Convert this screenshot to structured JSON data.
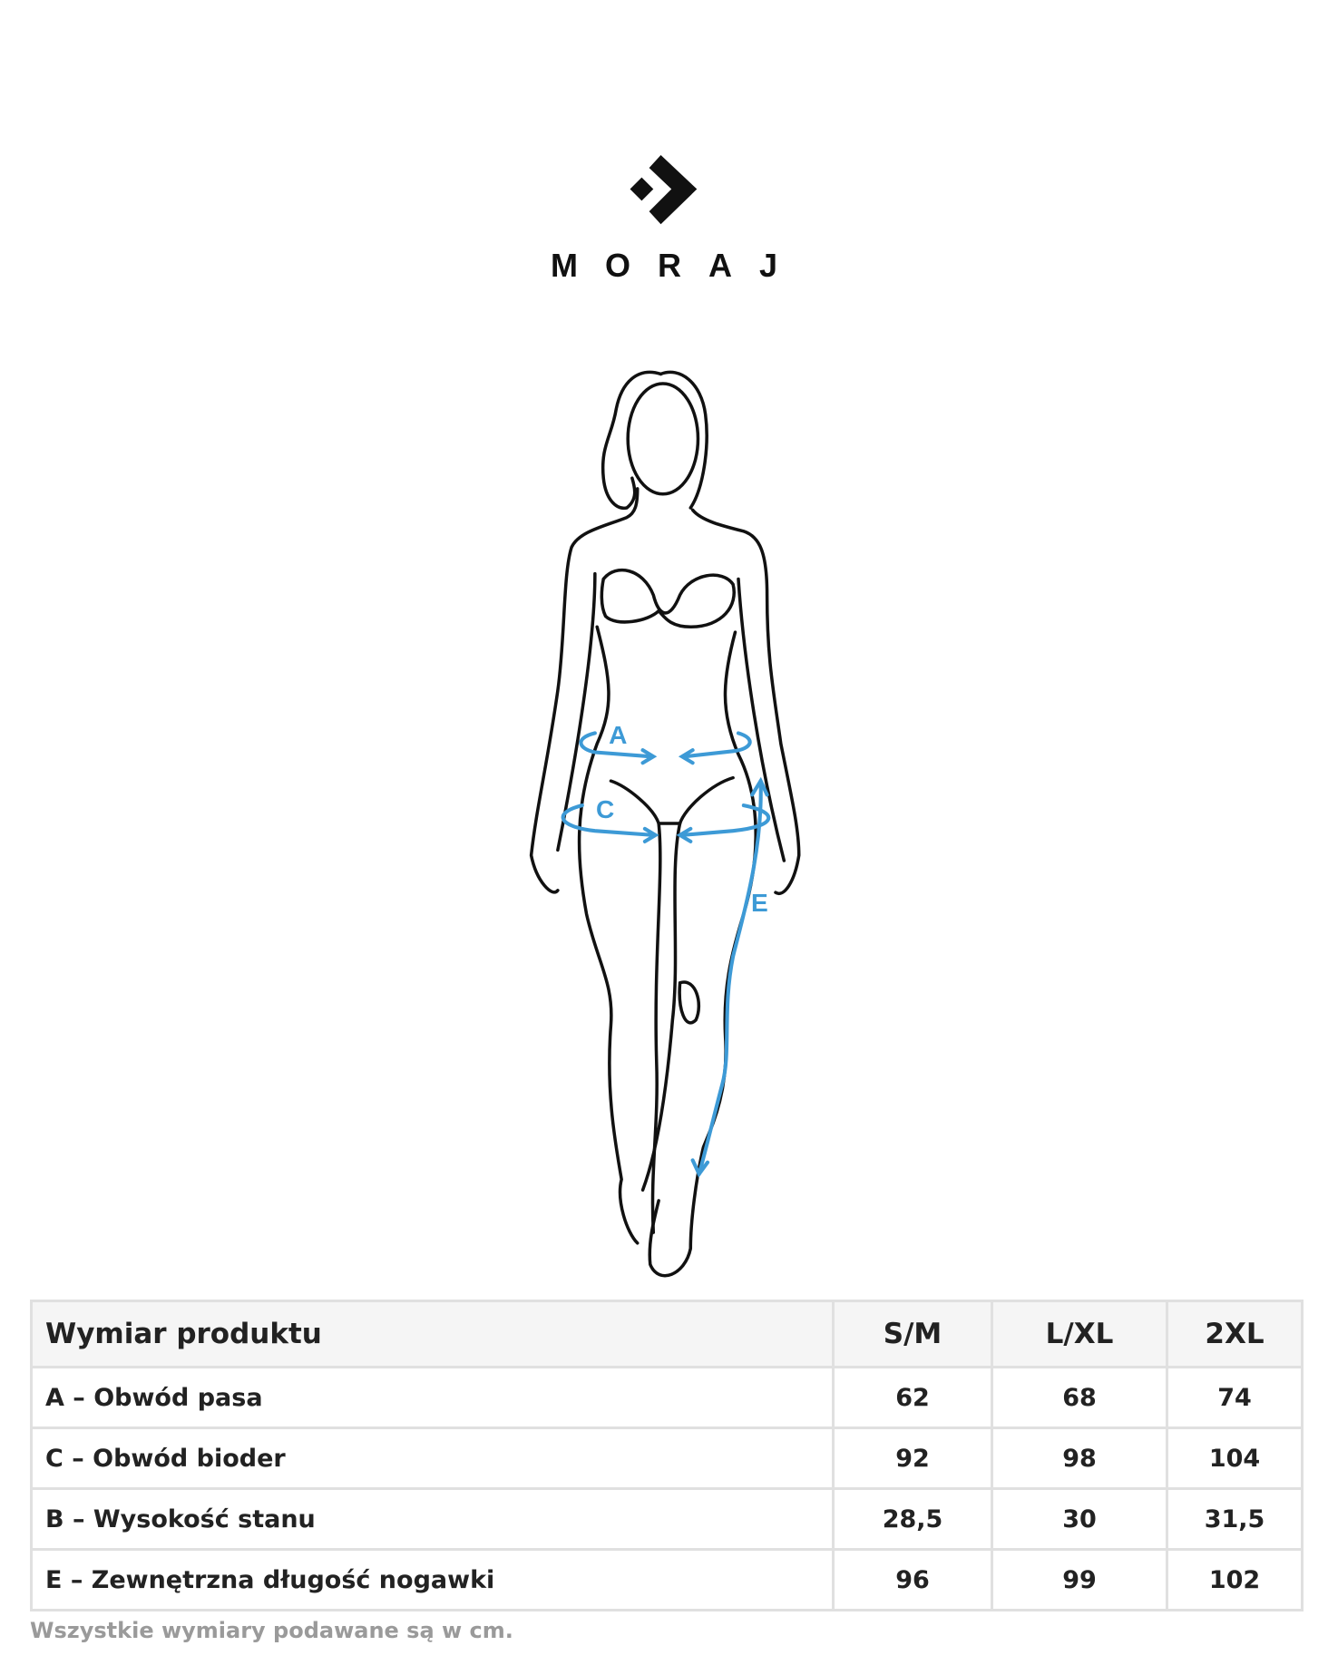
{
  "brand": {
    "name": "MORAJ",
    "logo_icon": "chevron-arrow-logo"
  },
  "figure": {
    "labels": {
      "a": "A",
      "c": "C",
      "e": "E"
    },
    "accent_color": "#3d9ad6"
  },
  "table": {
    "headers": [
      "Wymiar produktu",
      "S/M",
      "L/XL",
      "2XL"
    ],
    "rows": [
      {
        "label": "A – Obwód pasa",
        "values": [
          "62",
          "68",
          "74"
        ]
      },
      {
        "label": "C – Obwód bioder",
        "values": [
          "92",
          "98",
          "104"
        ]
      },
      {
        "label": "B – Wysokość stanu",
        "values": [
          "28,5",
          "30",
          "31,5"
        ]
      },
      {
        "label": "E – Zewnętrzna długość nogawki",
        "values": [
          "96",
          "99",
          "102"
        ]
      }
    ]
  },
  "note": "Wszystkie wymiary podawane są w cm."
}
